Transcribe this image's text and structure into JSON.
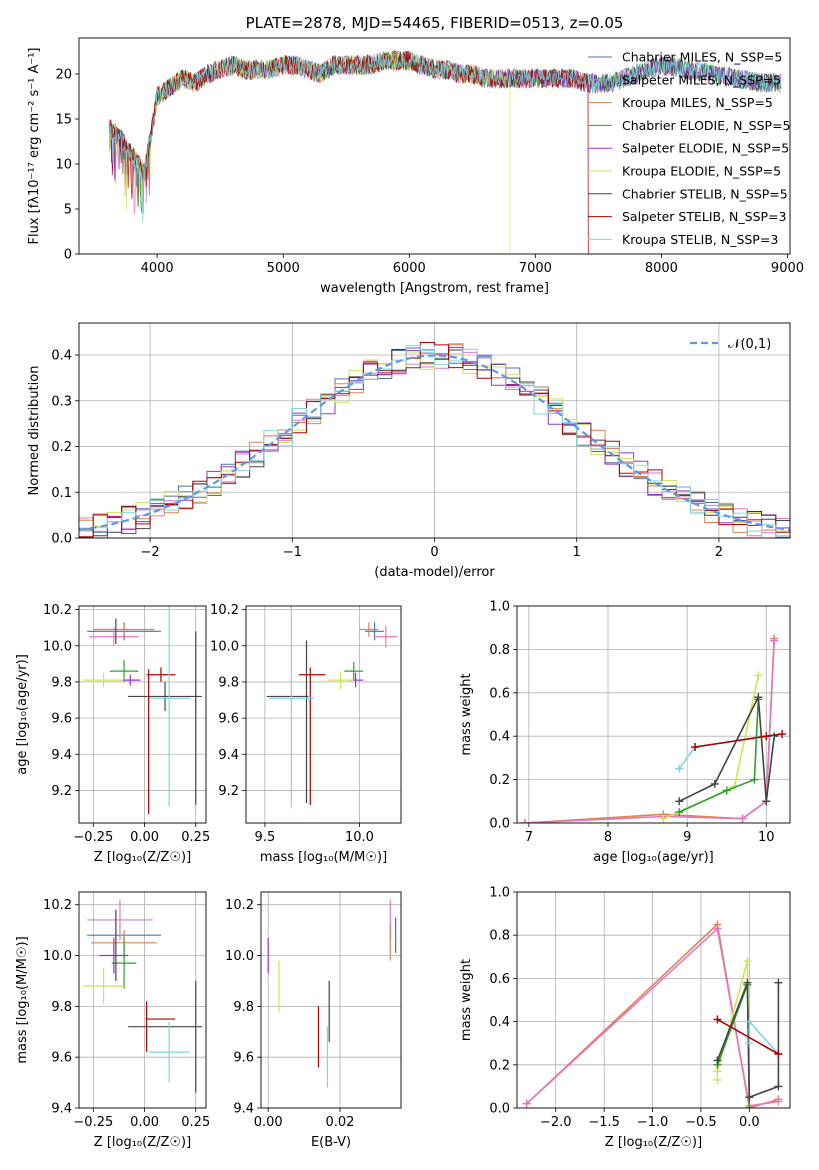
{
  "colors": {
    "c0": "#4c72b0",
    "c1": "#e377c2",
    "c2": "#dd8452",
    "c3": "#2ca02c",
    "c4": "#9b30d0",
    "c5": "#d4e157",
    "c6": "#444444",
    "c7": "#b00000",
    "c8": "#7fd6dd",
    "normal": "#6495ed",
    "grid": "#b0b0b0"
  },
  "chart_data": [
    {
      "type": "line",
      "title": "PLATE=2878, MJD=54465, FIBERID=0513, z=0.05",
      "xlabel": "wavelength [Angstrom, rest frame]",
      "ylabel": "Flux [fλ10⁻¹⁷ erg cm⁻² s⁻¹ A⁻¹]",
      "xlim": [
        3380,
        9020
      ],
      "ylim": [
        0,
        24
      ],
      "xticks": [
        "4000",
        "5000",
        "6000",
        "7000",
        "8000",
        "9000"
      ],
      "yticks": [
        "0",
        "5",
        "10",
        "15",
        "20"
      ],
      "legend_position": "top-right",
      "series_labels": [
        "Chabrier MILES, N_SSP=5",
        "Salpeter MILES, N_SSP=5",
        "Kroupa MILES, N_SSP=5",
        "Chabrier ELODIE, N_SSP=5",
        "Salpeter ELODIE, N_SSP=5",
        "Kroupa ELODIE, N_SSP=5",
        "Chabrier STELIB, N_SSP=5",
        "Salpeter STELIB, N_SSP=3",
        "Kroupa STELIB, N_SSP=3"
      ],
      "spectrum_x": [
        3620,
        3700,
        3800,
        3900,
        4000,
        4100,
        4200,
        4300,
        4400,
        4500,
        4600,
        4700,
        4800,
        4900,
        5000,
        5100,
        5200,
        5300,
        5400,
        5500,
        5600,
        5700,
        5800,
        5900,
        6000,
        6100,
        6200,
        6300,
        6400,
        6500,
        6600,
        6700,
        6800,
        6900,
        7000,
        7100,
        7200,
        7300,
        7400,
        7500,
        7600,
        7700,
        7800,
        7900,
        8000,
        8200,
        8400,
        8600,
        8800,
        8950
      ],
      "spectrum_y": [
        14,
        13,
        11,
        9,
        17.5,
        18.5,
        19.5,
        19,
        20,
        20.5,
        21,
        20.5,
        20.5,
        20.5,
        21,
        21,
        20.5,
        20,
        21,
        21,
        21,
        21,
        21.5,
        21.5,
        21.5,
        21,
        20.5,
        20.5,
        20,
        20,
        19.5,
        19.5,
        19.5,
        19.5,
        19.5,
        19.5,
        19.5,
        19.5,
        19,
        19,
        19,
        19.5,
        20,
        20.5,
        21,
        20.5,
        20,
        19.5,
        19,
        19
      ]
    },
    {
      "type": "line",
      "xlabel": "(data-model)/error",
      "ylabel": "Normed distribution",
      "xlim": [
        -2.5,
        2.5
      ],
      "ylim": [
        0,
        0.47
      ],
      "xticks": [
        "−2",
        "−1",
        "0",
        "1",
        "2"
      ],
      "yticks": [
        "0.0",
        "0.1",
        "0.2",
        "0.3",
        "0.4"
      ],
      "legend": "𝒩(0,1)",
      "legend_position": "top-right",
      "bin_width": 0.1
    },
    {
      "type": "scatter",
      "xlabel": "Z [log₁₀(Z/Z☉)]",
      "ylabel": "age  [log₁₀(age/yr)]",
      "xlim": [
        -0.32,
        0.3
      ],
      "ylim": [
        9.02,
        10.22
      ],
      "xticks": [
        "−0.25",
        "0.00",
        "0.25"
      ],
      "yticks": [
        "9.2",
        "9.4",
        "9.6",
        "9.8",
        "10.0",
        "10.2"
      ],
      "points": [
        {
          "c": "c0",
          "x": -0.1,
          "y": 10.08,
          "xerr": 0.18,
          "yerr": 0.05
        },
        {
          "c": "c1",
          "x": -0.15,
          "y": 10.05,
          "xerr": 0.12,
          "yerr": 0.05
        },
        {
          "c": "c2",
          "x": -0.1,
          "y": 10.09,
          "xerr": 0.15,
          "yerr": 0.03
        },
        {
          "c": "c3",
          "x": -0.1,
          "y": 9.86,
          "xerr": 0.07,
          "yerr": 0.06
        },
        {
          "c": "c4",
          "x": -0.07,
          "y": 9.81,
          "xerr": 0.05,
          "yerr": 0.03
        },
        {
          "c": "c5",
          "x": -0.2,
          "y": 9.81,
          "xerr": 0.1,
          "yerr": 0.04
        },
        {
          "c": "c6",
          "x": 0.1,
          "y": 9.72,
          "xerr": 0.18,
          "yerr": 0.08
        },
        {
          "c": "c7",
          "x": 0.08,
          "y": 9.84,
          "xerr": 0.07,
          "yerr": 0.04
        },
        {
          "c": "c8",
          "x": 0.12,
          "y": 9.71,
          "xerr": 0.1,
          "yerr": 0.6
        },
        {
          "c": "c6",
          "x": 0.25,
          "y": 9.6,
          "xerr": 0.0,
          "yerr": 0.48
        },
        {
          "c": "c7",
          "x": 0.02,
          "y": 9.47,
          "xerr": 0.0,
          "yerr": 0.4
        },
        {
          "c": "c6",
          "x": -0.14,
          "y": 10.08,
          "xerr": 0.0,
          "yerr": 0.07
        }
      ]
    },
    {
      "type": "scatter",
      "xlabel": "mass [log₁₀(M/M☉)]",
      "ylabel": "",
      "xlim": [
        9.4,
        10.22
      ],
      "ylim": [
        9.02,
        10.22
      ],
      "xticks": [
        "9.5",
        "10.0"
      ],
      "yticks": [
        "9.2",
        "9.4",
        "9.6",
        "9.8",
        "10.0",
        "10.2"
      ],
      "points": [
        {
          "c": "c0",
          "x": 10.08,
          "y": 10.08,
          "xerr": 0.05,
          "yerr": 0.05
        },
        {
          "c": "c1",
          "x": 10.14,
          "y": 10.05,
          "xerr": 0.06,
          "yerr": 0.06
        },
        {
          "c": "c2",
          "x": 10.05,
          "y": 10.09,
          "xerr": 0.05,
          "yerr": 0.04
        },
        {
          "c": "c3",
          "x": 9.97,
          "y": 9.86,
          "xerr": 0.05,
          "yerr": 0.05
        },
        {
          "c": "c4",
          "x": 9.98,
          "y": 9.81,
          "xerr": 0.04,
          "yerr": 0.04
        },
        {
          "c": "c5",
          "x": 9.9,
          "y": 9.81,
          "xerr": 0.07,
          "yerr": 0.05
        },
        {
          "c": "c6",
          "x": 9.72,
          "y": 9.58,
          "xerr": 0.0,
          "yerr": 0.45
        },
        {
          "c": "c6",
          "x": 9.62,
          "y": 9.72,
          "xerr": 0.11,
          "yerr": 0.0
        },
        {
          "c": "c7",
          "x": 9.75,
          "y": 9.84,
          "xerr": 0.07,
          "yerr": 0.0
        },
        {
          "c": "c7",
          "x": 9.74,
          "y": 9.5,
          "xerr": 0.0,
          "yerr": 0.38
        },
        {
          "c": "c8",
          "x": 9.64,
          "y": 9.71,
          "xerr": 0.12,
          "yerr": 0.6
        }
      ]
    },
    {
      "type": "line",
      "xlabel": "age  [log₁₀(age/yr)]",
      "ylabel": "mass weight",
      "xlim": [
        6.85,
        10.3
      ],
      "ylim": [
        0,
        1
      ],
      "xticks": [
        "7",
        "8",
        "9",
        "10"
      ],
      "yticks": [
        "0.0",
        "0.2",
        "0.4",
        "0.6",
        "0.8",
        "1.0"
      ],
      "series": [
        {
          "c": "c2",
          "x": [
            6.95,
            8.7,
            9.7,
            10.0,
            10.1
          ],
          "y": [
            0.0,
            0.04,
            0.02,
            0.1,
            0.85
          ]
        },
        {
          "c": "c1",
          "x": [
            6.95,
            8.7,
            9.7,
            10.0,
            10.1
          ],
          "y": [
            0.0,
            0.03,
            0.02,
            0.1,
            0.84
          ]
        },
        {
          "c": "c5",
          "x": [
            8.7,
            9.5,
            9.6,
            9.9
          ],
          "y": [
            0.02,
            0.15,
            0.17,
            0.68
          ]
        },
        {
          "c": "c3",
          "x": [
            8.9,
            9.5,
            9.85,
            9.9
          ],
          "y": [
            0.05,
            0.15,
            0.2,
            0.57
          ]
        },
        {
          "c": "c6",
          "x": [
            8.9,
            9.35,
            9.9,
            10.0,
            10.1
          ],
          "y": [
            0.1,
            0.18,
            0.58,
            0.1,
            0.4
          ]
        },
        {
          "c": "c8",
          "x": [
            8.9,
            9.1,
            10.05
          ],
          "y": [
            0.25,
            0.35,
            0.4
          ]
        },
        {
          "c": "c7",
          "x": [
            9.1,
            10.0,
            10.2
          ],
          "y": [
            0.35,
            0.4,
            0.41
          ]
        }
      ]
    },
    {
      "type": "scatter",
      "xlabel": "Z [log₁₀(Z/Z☉)]",
      "ylabel": "mass [log₁₀(M/M☉)]",
      "xlim": [
        -0.32,
        0.3
      ],
      "ylim": [
        9.4,
        10.25
      ],
      "xticks": [
        "−0.25",
        "0.00",
        "0.25"
      ],
      "yticks": [
        "9.4",
        "9.6",
        "9.8",
        "10.0",
        "10.2"
      ],
      "points": [
        {
          "c": "c0",
          "x": -0.1,
          "y": 10.08,
          "xerr": 0.18,
          "yerr": 0.0
        },
        {
          "c": "c1",
          "x": -0.12,
          "y": 10.14,
          "xerr": 0.16,
          "yerr": 0.08
        },
        {
          "c": "c2",
          "x": -0.1,
          "y": 10.05,
          "xerr": 0.16,
          "yerr": 0.05
        },
        {
          "c": "c3",
          "x": -0.1,
          "y": 9.97,
          "xerr": 0.06,
          "yerr": 0.1
        },
        {
          "c": "c4",
          "x": -0.15,
          "y": 10.0,
          "xerr": 0.07,
          "yerr": 0.07
        },
        {
          "c": "c5",
          "x": -0.2,
          "y": 9.88,
          "xerr": 0.1,
          "yerr": 0.07
        },
        {
          "c": "c6",
          "x": 0.1,
          "y": 9.72,
          "xerr": 0.18,
          "yerr": 0.0
        },
        {
          "c": "c6",
          "x": 0.25,
          "y": 9.68,
          "xerr": 0.0,
          "yerr": 0.22
        },
        {
          "c": "c7",
          "x": 0.08,
          "y": 9.75,
          "xerr": 0.07,
          "yerr": 0.0
        },
        {
          "c": "c7",
          "x": 0.01,
          "y": 9.72,
          "xerr": 0.0,
          "yerr": 0.1
        },
        {
          "c": "c8",
          "x": 0.12,
          "y": 9.62,
          "xerr": 0.1,
          "yerr": 0.12
        },
        {
          "c": "c6",
          "x": -0.14,
          "y": 10.04,
          "xerr": 0.0,
          "yerr": 0.14
        }
      ]
    },
    {
      "type": "scatter",
      "xlabel": "E(B-V)",
      "ylabel": "",
      "xlim": [
        -0.002,
        0.037
      ],
      "ylim": [
        9.4,
        10.25
      ],
      "xticks": [
        "0.00",
        "0.02"
      ],
      "yticks": [
        "9.4",
        "9.6",
        "9.8",
        "10.0",
        "10.2"
      ],
      "points": [
        {
          "c": "c4",
          "x": 0.0,
          "y": 10.0,
          "yerr": 0.07
        },
        {
          "c": "c5",
          "x": 0.003,
          "y": 9.88,
          "yerr": 0.1
        },
        {
          "c": "c7",
          "x": 0.014,
          "y": 9.68,
          "yerr": 0.12
        },
        {
          "c": "c6",
          "x": 0.017,
          "y": 9.78,
          "yerr": 0.12
        },
        {
          "c": "c8",
          "x": 0.0165,
          "y": 9.6,
          "yerr": 0.12
        },
        {
          "c": "c1",
          "x": 0.034,
          "y": 10.14,
          "yerr": 0.08
        },
        {
          "c": "c2",
          "x": 0.034,
          "y": 10.05,
          "yerr": 0.07
        },
        {
          "c": "c0",
          "x": 0.0355,
          "y": 10.08,
          "yerr": 0.07
        }
      ]
    },
    {
      "type": "line",
      "xlabel": "Z [log₁₀(Z/Z☉)]",
      "ylabel": "mass weight",
      "xlim": [
        -2.4,
        0.42
      ],
      "ylim": [
        0,
        1
      ],
      "xticks": [
        "−2.0",
        "−1.5",
        "−1.0",
        "−0.5",
        "0.0"
      ],
      "yticks": [
        "0.0",
        "0.2",
        "0.4",
        "0.6",
        "0.8",
        "1.0"
      ],
      "series": [
        {
          "c": "c2",
          "x": [
            -2.3,
            -0.33,
            0.0,
            0.3
          ],
          "y": [
            0.02,
            0.85,
            0.0,
            0.04
          ]
        },
        {
          "c": "c1",
          "x": [
            -2.3,
            -0.33,
            0.0,
            0.3
          ],
          "y": [
            0.02,
            0.83,
            0.01,
            0.03
          ]
        },
        {
          "c": "c5",
          "x": [
            -0.33,
            -0.33,
            -0.02,
            0.0
          ],
          "y": [
            0.13,
            0.17,
            0.68,
            0.0
          ]
        },
        {
          "c": "c3",
          "x": [
            -0.33,
            -0.02,
            0.0,
            0.0
          ],
          "y": [
            0.2,
            0.57,
            0.05,
            0.0
          ]
        },
        {
          "c": "c6",
          "x": [
            -0.33,
            -0.02,
            0.0,
            0.3,
            0.3
          ],
          "y": [
            0.22,
            0.58,
            0.05,
            0.1,
            0.58
          ]
        },
        {
          "c": "c8",
          "x": [
            0.0,
            0.0,
            0.3
          ],
          "y": [
            0.3,
            0.4,
            0.25
          ]
        },
        {
          "c": "c7",
          "x": [
            -0.33,
            0.3
          ],
          "y": [
            0.41,
            0.25
          ]
        }
      ]
    }
  ]
}
